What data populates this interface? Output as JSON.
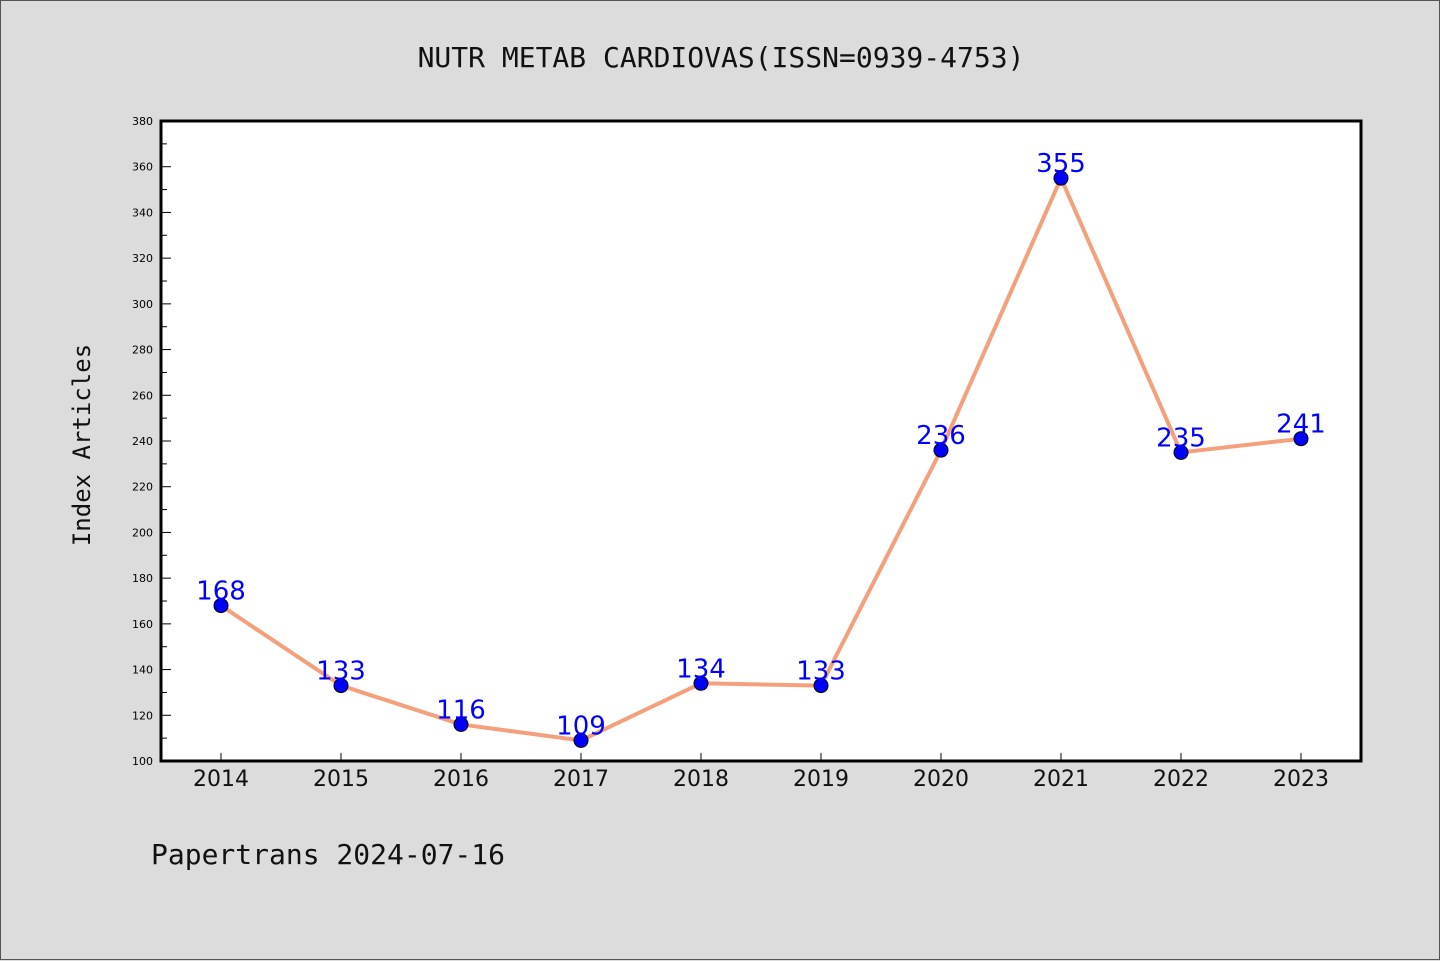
{
  "chart_data": {
    "type": "line",
    "title": "NUTR METAB CARDIOVAS(ISSN=0939-4753)",
    "xlabel": "",
    "ylabel": "Index Articles",
    "categories": [
      "2014",
      "2015",
      "2016",
      "2017",
      "2018",
      "2019",
      "2020",
      "2021",
      "2022",
      "2023"
    ],
    "series": [
      {
        "values": [
          168,
          133,
          116,
          109,
          134,
          133,
          236,
          355,
          235,
          241
        ],
        "line_color": "#f4a07c",
        "marker_color": "#0000ff",
        "label_color": "#0000ff"
      }
    ],
    "ylim": [
      100,
      380
    ],
    "y_major_step": 20,
    "y_minor_step": 10,
    "grid": false,
    "legend": "none"
  },
  "footer": "Papertrans 2024-07-16"
}
